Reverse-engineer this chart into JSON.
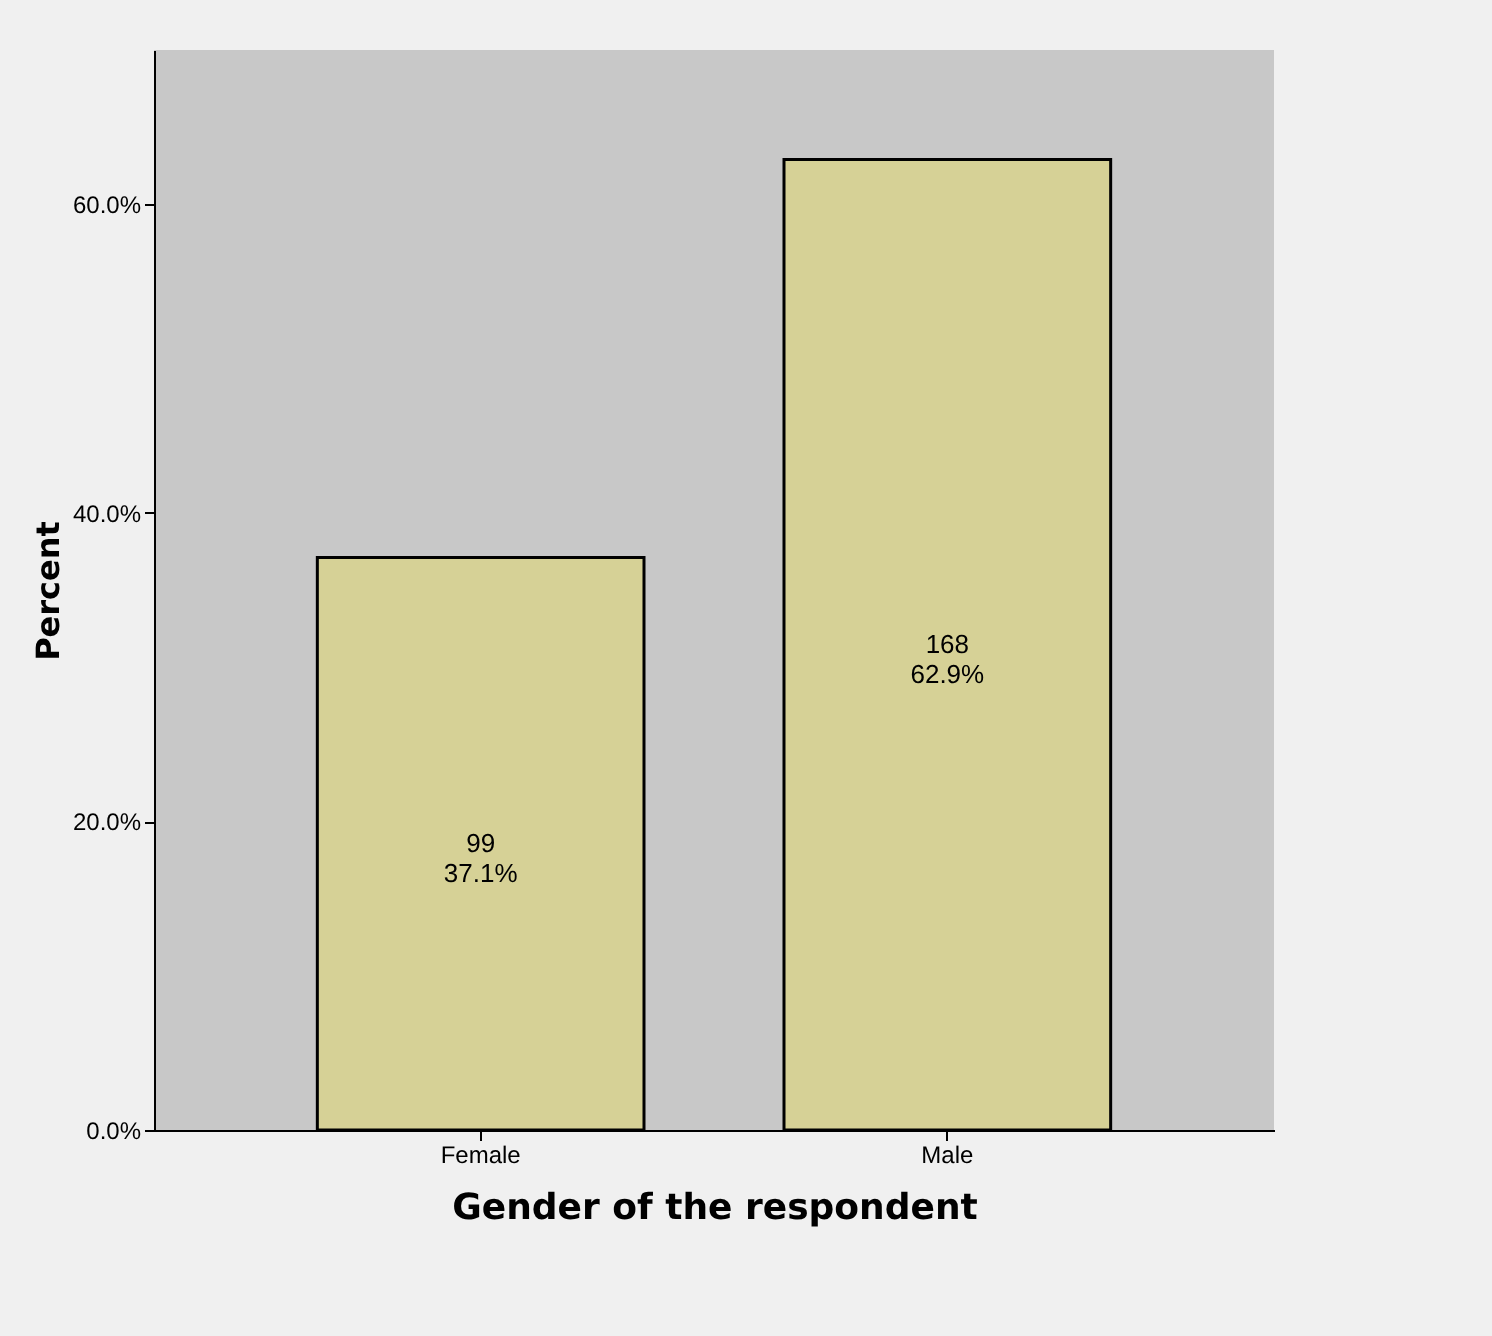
{
  "chart_data": {
    "type": "bar",
    "xlabel": "Gender of the respondent",
    "ylabel": "Percent",
    "categories": [
      "Female",
      "Male"
    ],
    "values": [
      37.1,
      62.9
    ],
    "color": "#d6d196",
    "value_labels": [
      "99\n37.1%",
      "168\n62.9%"
    ],
    "ylim": [
      0,
      70
    ],
    "yticks": [
      {
        "value": 0,
        "label": "0.0%"
      },
      {
        "value": 20,
        "label": "20.0%"
      },
      {
        "value": 40,
        "label": "40.0%"
      },
      {
        "value": 60,
        "label": "60.0%"
      }
    ],
    "grid": false
  }
}
